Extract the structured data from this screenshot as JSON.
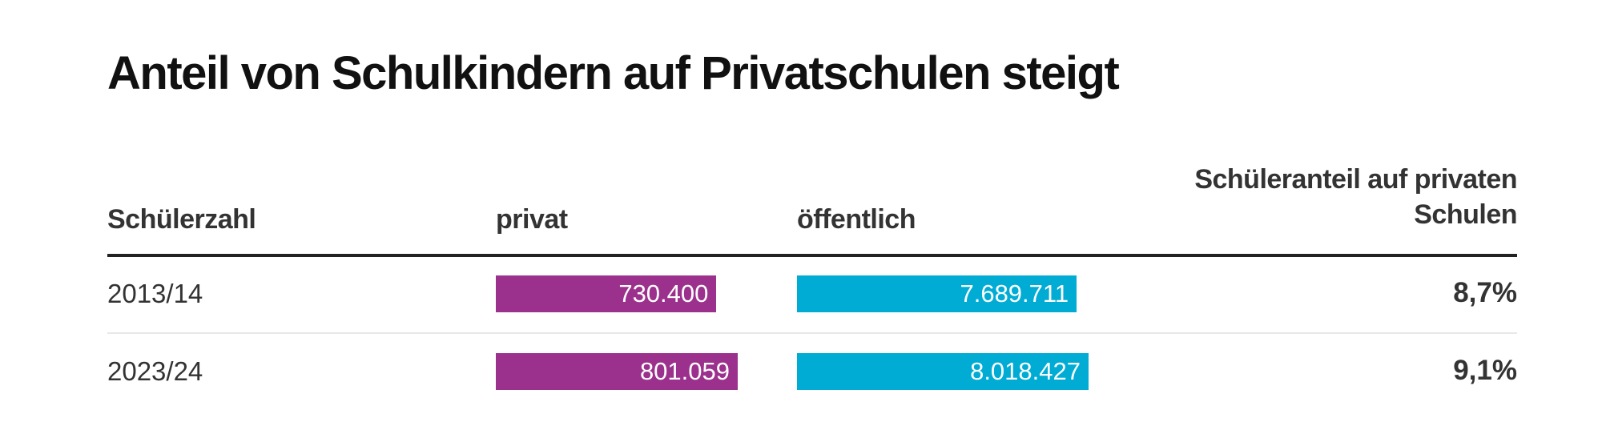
{
  "chart_data": {
    "type": "table",
    "title": "Anteil von Schulkindern auf Privatschulen steigt",
    "columns": [
      "Schülerzahl",
      "privat",
      "öffentlich",
      "Schüleranteil auf privaten Schulen"
    ],
    "rows": [
      {
        "year": "2013/14",
        "privat": 730400,
        "privat_label": "730.400",
        "oeffentlich": 7689711,
        "oeffentlich_label": "7.689.711",
        "anteil": "8,7%"
      },
      {
        "year": "2023/24",
        "privat": 801059,
        "privat_label": "801.059",
        "oeffentlich": 8018427,
        "oeffentlich_label": "8.018.427",
        "anteil": "9,1%"
      }
    ],
    "colors": {
      "privat": "#9b318c",
      "oeffentlich": "#00acd4"
    }
  }
}
